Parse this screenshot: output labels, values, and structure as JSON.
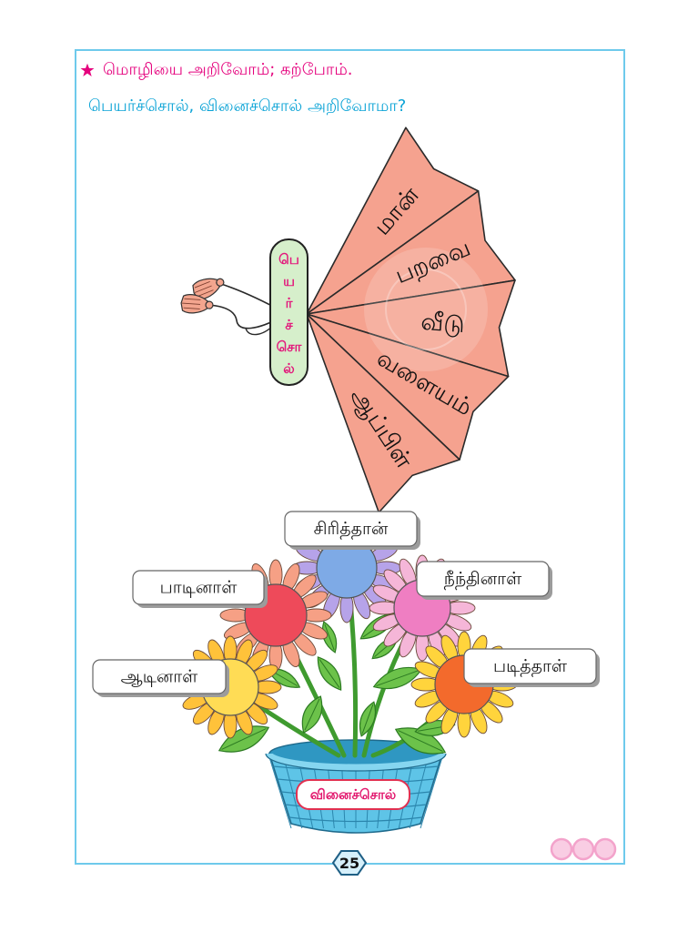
{
  "header": {
    "star_icon": "star-icon",
    "title": "மொழியை அறிவோம்; கற்போம்.",
    "subtitle": "பெயர்ச்சொல், வினைச்சொல் அறிவோமா?"
  },
  "fan": {
    "handle_letters": [
      "பெ",
      "ய",
      "ர்",
      "ச்",
      "சொ",
      "ல்"
    ],
    "blade_words": [
      "மான்",
      "பறவை",
      "வீடு",
      "வளையம்",
      "ஆப்பிள்"
    ],
    "colors": {
      "blade": "#F5A28F",
      "handle": "#D6EFCB",
      "handle_text": "#E3197C",
      "tassel": "#F3A58E"
    }
  },
  "flower_pot": {
    "basket_label": "வினைச்சொல்",
    "flowers": [
      {
        "label": "சிரித்தான்",
        "center_color": "#7EAAE6",
        "petal_color": "#B6A3E9"
      },
      {
        "label": "பாடினாள்",
        "center_color": "#EE4A5A",
        "petal_color": "#F6A085"
      },
      {
        "label": "நீந்தினாள்",
        "center_color": "#EF7EC2",
        "petal_color": "#F5B6D8"
      },
      {
        "label": "ஆடினாள்",
        "center_color": "#FFDC55",
        "petal_color": "#FFC23A"
      },
      {
        "label": "படித்தாள்",
        "center_color": "#F36A2C",
        "petal_color": "#FFD43C"
      }
    ],
    "colors": {
      "basket": "#5EC4E7",
      "stem": "#3F9B2F",
      "leaf": "#6CC24A",
      "label_text": "#E2186E",
      "label_border": "#E23050"
    }
  },
  "footer": {
    "page_number": "25",
    "decoration_icon": "three-circles-icon"
  },
  "colors": {
    "frame": "#6ECAEC",
    "title": "#E5007D",
    "subtitle": "#0AA3D6"
  }
}
